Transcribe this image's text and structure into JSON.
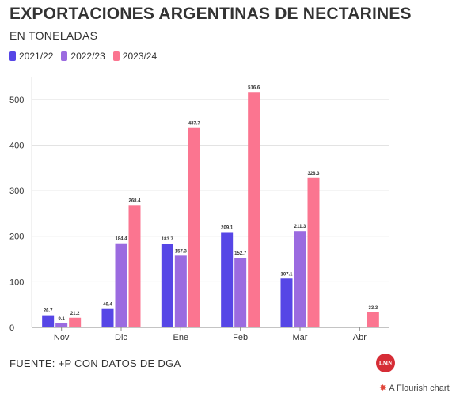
{
  "title": "EXPORTACIONES ARGENTINAS DE NECTARINES",
  "subtitle": "EN TONELADAS",
  "source": "FUENTE: +P CON DATOS DE DGA",
  "logo_text": "LMN",
  "flourish": {
    "icon": "flourish-star-icon",
    "text": "A Flourish chart"
  },
  "colors": {
    "2021/22": "#5646e6",
    "2022/23": "#9b6be0",
    "2023/24": "#fb7590",
    "grid": "#e3e3e3",
    "axis": "#888888"
  },
  "legend": [
    {
      "label": "2021/22",
      "color": "#5646e6"
    },
    {
      "label": "2022/23",
      "color": "#9b6be0"
    },
    {
      "label": "2023/24",
      "color": "#fb7590"
    }
  ],
  "chart_data": {
    "type": "bar",
    "title": "EXPORTACIONES ARGENTINAS DE NECTARINES",
    "subtitle": "EN TONELADAS",
    "categories": [
      "Nov",
      "Dic",
      "Ene",
      "Feb",
      "Mar",
      "Abr"
    ],
    "series": [
      {
        "name": "2021/22",
        "values": [
          26.7,
          40.4,
          183.7,
          209.1,
          107.1,
          null
        ]
      },
      {
        "name": "2022/23",
        "values": [
          9.1,
          184.4,
          157.3,
          152.7,
          211.3,
          null
        ]
      },
      {
        "name": "2023/24",
        "values": [
          21.2,
          268.4,
          437.7,
          516.6,
          328.3,
          33.3
        ]
      }
    ],
    "yticks": [
      0,
      100,
      200,
      300,
      400,
      500
    ],
    "ylim": [
      0,
      550
    ],
    "grid": true,
    "legend_position": "top-left"
  }
}
